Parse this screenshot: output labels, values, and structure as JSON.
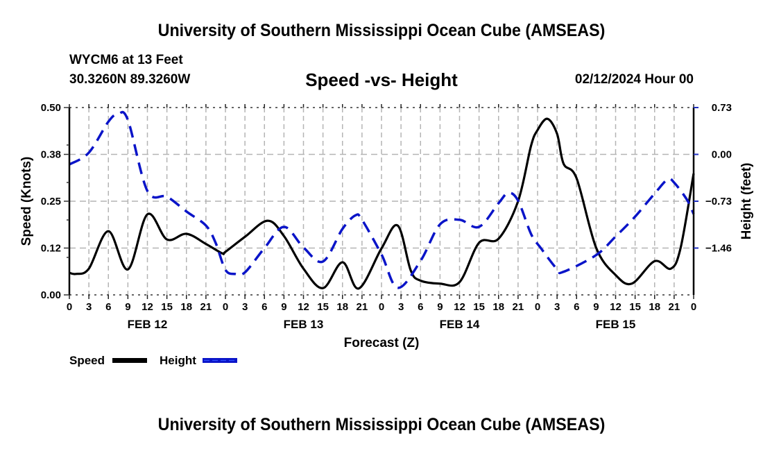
{
  "header": {
    "main_title": "University of Southern Mississippi Ocean Cube (AMSEAS)",
    "station": "WYCM6 at 13 Feet",
    "coordinates": "30.3260N  89.3260W",
    "chart_title": "Speed -vs- Height",
    "run_time": "02/12/2024 Hour 00"
  },
  "footer": {
    "bottom_title": "University of Southern Mississippi Ocean Cube (AMSEAS)"
  },
  "colors": {
    "speed": "#000000",
    "height": "#0a14c8",
    "grid": "#b4b4b4"
  },
  "chart_data": {
    "type": "line",
    "title": "Speed -vs- Height",
    "xlabel": "Forecast (Z)",
    "ylabel": "Speed (Knots)",
    "y2label": "Height (feet)",
    "xlim": [
      0,
      96
    ],
    "ylim": [
      0,
      0.5
    ],
    "y2lim": [
      -2.19,
      0.73
    ],
    "grid": true,
    "legend_position": "bottom-left",
    "x_tick_labels": [
      "0",
      "3",
      "6",
      "9",
      "12",
      "15",
      "18",
      "21",
      "0",
      "3",
      "6",
      "9",
      "12",
      "15",
      "18",
      "21",
      "0",
      "3",
      "6",
      "9",
      "12",
      "15",
      "18",
      "21",
      "0",
      "3",
      "6",
      "9",
      "12",
      "15",
      "18",
      "21",
      "0"
    ],
    "date_labels": [
      {
        "label": "FEB 12",
        "hour": 12
      },
      {
        "label": "FEB 13",
        "hour": 36
      },
      {
        "label": "FEB 14",
        "hour": 60
      },
      {
        "label": "FEB 15",
        "hour": 84
      }
    ],
    "y_ticks": [
      {
        "value": 0.0,
        "label": "0.00"
      },
      {
        "value": 0.125,
        "label": "0.12"
      },
      {
        "value": 0.25,
        "label": "0.25"
      },
      {
        "value": 0.375,
        "label": "0.38"
      },
      {
        "value": 0.5,
        "label": "0.50"
      }
    ],
    "y2_ticks": [
      {
        "value": -1.46,
        "label": "−1.46"
      },
      {
        "value": -0.73,
        "label": "−0.73"
      },
      {
        "value": 0.0,
        "label": "0.00"
      },
      {
        "value": 0.73,
        "label": "0.73"
      }
    ],
    "series": [
      {
        "name": "Speed",
        "axis": "left",
        "style": "solid",
        "x": [
          0,
          1,
          3,
          6,
          9,
          12,
          15,
          18,
          21,
          23.5,
          24,
          27,
          30.5,
          33,
          36,
          39,
          42,
          44.5,
          48,
          50.5,
          52.5,
          54,
          57,
          60,
          63,
          66,
          69,
          71,
          72,
          73.5,
          75,
          76,
          78,
          81,
          84,
          86.5,
          90,
          92.5,
          94,
          96
        ],
        "values": [
          0.059,
          0.056,
          0.07,
          0.17,
          0.068,
          0.215,
          0.148,
          0.163,
          0.136,
          0.111,
          0.115,
          0.155,
          0.198,
          0.157,
          0.07,
          0.018,
          0.087,
          0.017,
          0.124,
          0.185,
          0.065,
          0.038,
          0.03,
          0.034,
          0.139,
          0.15,
          0.25,
          0.398,
          0.44,
          0.47,
          0.43,
          0.35,
          0.311,
          0.126,
          0.053,
          0.03,
          0.09,
          0.07,
          0.126,
          0.324
        ]
      },
      {
        "name": "Height",
        "axis": "right",
        "style": "dashed",
        "x": [
          0,
          3,
          6,
          7.5,
          9,
          12,
          15,
          18,
          21,
          22.5,
          24,
          25.5,
          27,
          30,
          33,
          36,
          39,
          42,
          44,
          45,
          48,
          50.5,
          54,
          57,
          60,
          63,
          66,
          67.5,
          69,
          71,
          72.5,
          75,
          76,
          81,
          84,
          87,
          90,
          92,
          93,
          95,
          96
        ],
        "values": [
          -0.157,
          0.027,
          0.51,
          0.63,
          0.535,
          -0.57,
          -0.66,
          -0.89,
          -1.11,
          -1.38,
          -1.8,
          -1.865,
          -1.84,
          -1.46,
          -1.13,
          -1.45,
          -1.67,
          -1.16,
          -0.95,
          -1.02,
          -1.56,
          -2.08,
          -1.66,
          -1.09,
          -1.02,
          -1.13,
          -0.76,
          -0.6,
          -0.72,
          -1.24,
          -1.46,
          -1.79,
          -1.83,
          -1.57,
          -1.28,
          -0.97,
          -0.61,
          -0.39,
          -0.44,
          -0.71,
          -0.93
        ]
      }
    ],
    "legend": [
      {
        "label": "Speed",
        "style": "solid"
      },
      {
        "label": "Height",
        "style": "dashed"
      }
    ]
  }
}
